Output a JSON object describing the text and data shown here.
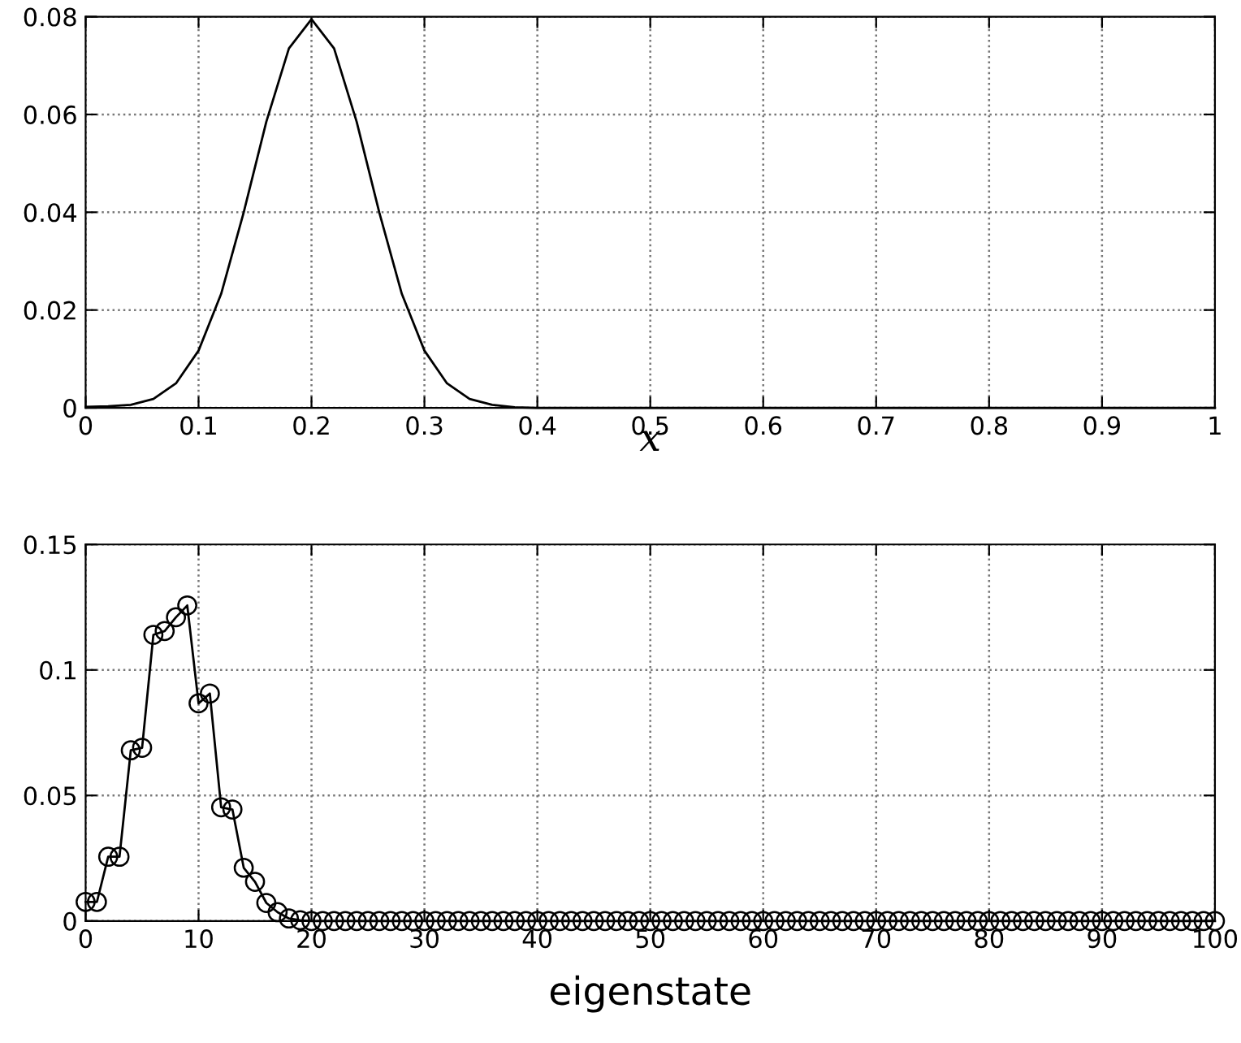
{
  "chart_data": [
    {
      "type": "line",
      "xlabel": "x",
      "x": [
        0,
        0.02,
        0.04,
        0.06,
        0.08,
        0.1,
        0.12,
        0.14,
        0.16,
        0.18,
        0.2,
        0.22,
        0.24,
        0.26,
        0.28,
        0.3,
        0.32,
        0.34,
        0.36,
        0.38,
        0.4,
        0.5,
        0.6,
        0.7,
        0.8,
        0.9,
        1
      ],
      "series": [
        {
          "color": "#000000",
          "values": [
            0.0002,
            0.0003,
            0.0006,
            0.0018,
            0.005,
            0.0117,
            0.0233,
            0.04,
            0.0585,
            0.0735,
            0.0795,
            0.0735,
            0.0585,
            0.04,
            0.0233,
            0.0117,
            0.005,
            0.0018,
            0.0006,
            0.0001,
            0,
            0,
            0,
            0,
            0,
            0,
            0
          ]
        }
      ],
      "xlim": [
        0,
        1
      ],
      "xticks": [
        0,
        0.1,
        0.2,
        0.3,
        0.4,
        0.5,
        0.6,
        0.7,
        0.8,
        0.9,
        1
      ],
      "ylim": [
        0,
        0.08
      ],
      "yticks": [
        0,
        0.02,
        0.04,
        0.06,
        0.08
      ],
      "grid": true,
      "marker": "none",
      "line_style": "solid"
    },
    {
      "type": "line",
      "xlabel": "eigenstate",
      "x": [
        0,
        1,
        2,
        3,
        4,
        5,
        6,
        7,
        8,
        9,
        10,
        11,
        12,
        13,
        14,
        15,
        16,
        17,
        18,
        19,
        20,
        21,
        22,
        23,
        24,
        25,
        26,
        27,
        28,
        29,
        30,
        31,
        32,
        33,
        34,
        35,
        36,
        37,
        38,
        39,
        40,
        41,
        42,
        43,
        44,
        45,
        46,
        47,
        48,
        49,
        50,
        51,
        52,
        53,
        54,
        55,
        56,
        57,
        58,
        59,
        60,
        61,
        62,
        63,
        64,
        65,
        66,
        67,
        68,
        69,
        70,
        71,
        72,
        73,
        74,
        75,
        76,
        77,
        78,
        79,
        80,
        81,
        82,
        83,
        84,
        85,
        86,
        87,
        88,
        89,
        90,
        91,
        92,
        93,
        94,
        95,
        96,
        97,
        98,
        99,
        100
      ],
      "series": [
        {
          "color": "#000000",
          "values": [
            0.0076,
            0.0076,
            0.0256,
            0.0256,
            0.068,
            0.069,
            0.114,
            0.1155,
            0.121,
            0.1257,
            0.0867,
            0.0906,
            0.0453,
            0.0444,
            0.0212,
            0.0156,
            0.0072,
            0.0035,
            0.001,
            0.0003,
            0,
            0,
            0,
            0,
            0,
            0,
            0,
            0,
            0,
            0,
            0,
            0,
            0,
            0,
            0,
            0,
            0,
            0,
            0,
            0,
            0,
            0,
            0,
            0,
            0,
            0,
            0,
            0,
            0,
            0,
            0,
            0,
            0,
            0,
            0,
            0,
            0,
            0,
            0,
            0,
            0,
            0,
            0,
            0,
            0,
            0,
            0,
            0,
            0,
            0,
            0,
            0,
            0,
            0,
            0,
            0,
            0,
            0,
            0,
            0,
            0,
            0,
            0,
            0,
            0,
            0,
            0,
            0,
            0,
            0,
            0,
            0,
            0,
            0,
            0,
            0,
            0,
            0,
            0,
            0,
            0
          ]
        }
      ],
      "xlim": [
        0,
        100
      ],
      "xticks": [
        0,
        10,
        20,
        30,
        40,
        50,
        60,
        70,
        80,
        90,
        100
      ],
      "ylim": [
        0,
        0.15
      ],
      "yticks": [
        0,
        0.05,
        0.1,
        0.15
      ],
      "grid": true,
      "marker": "circle",
      "line_style": "solid"
    }
  ]
}
